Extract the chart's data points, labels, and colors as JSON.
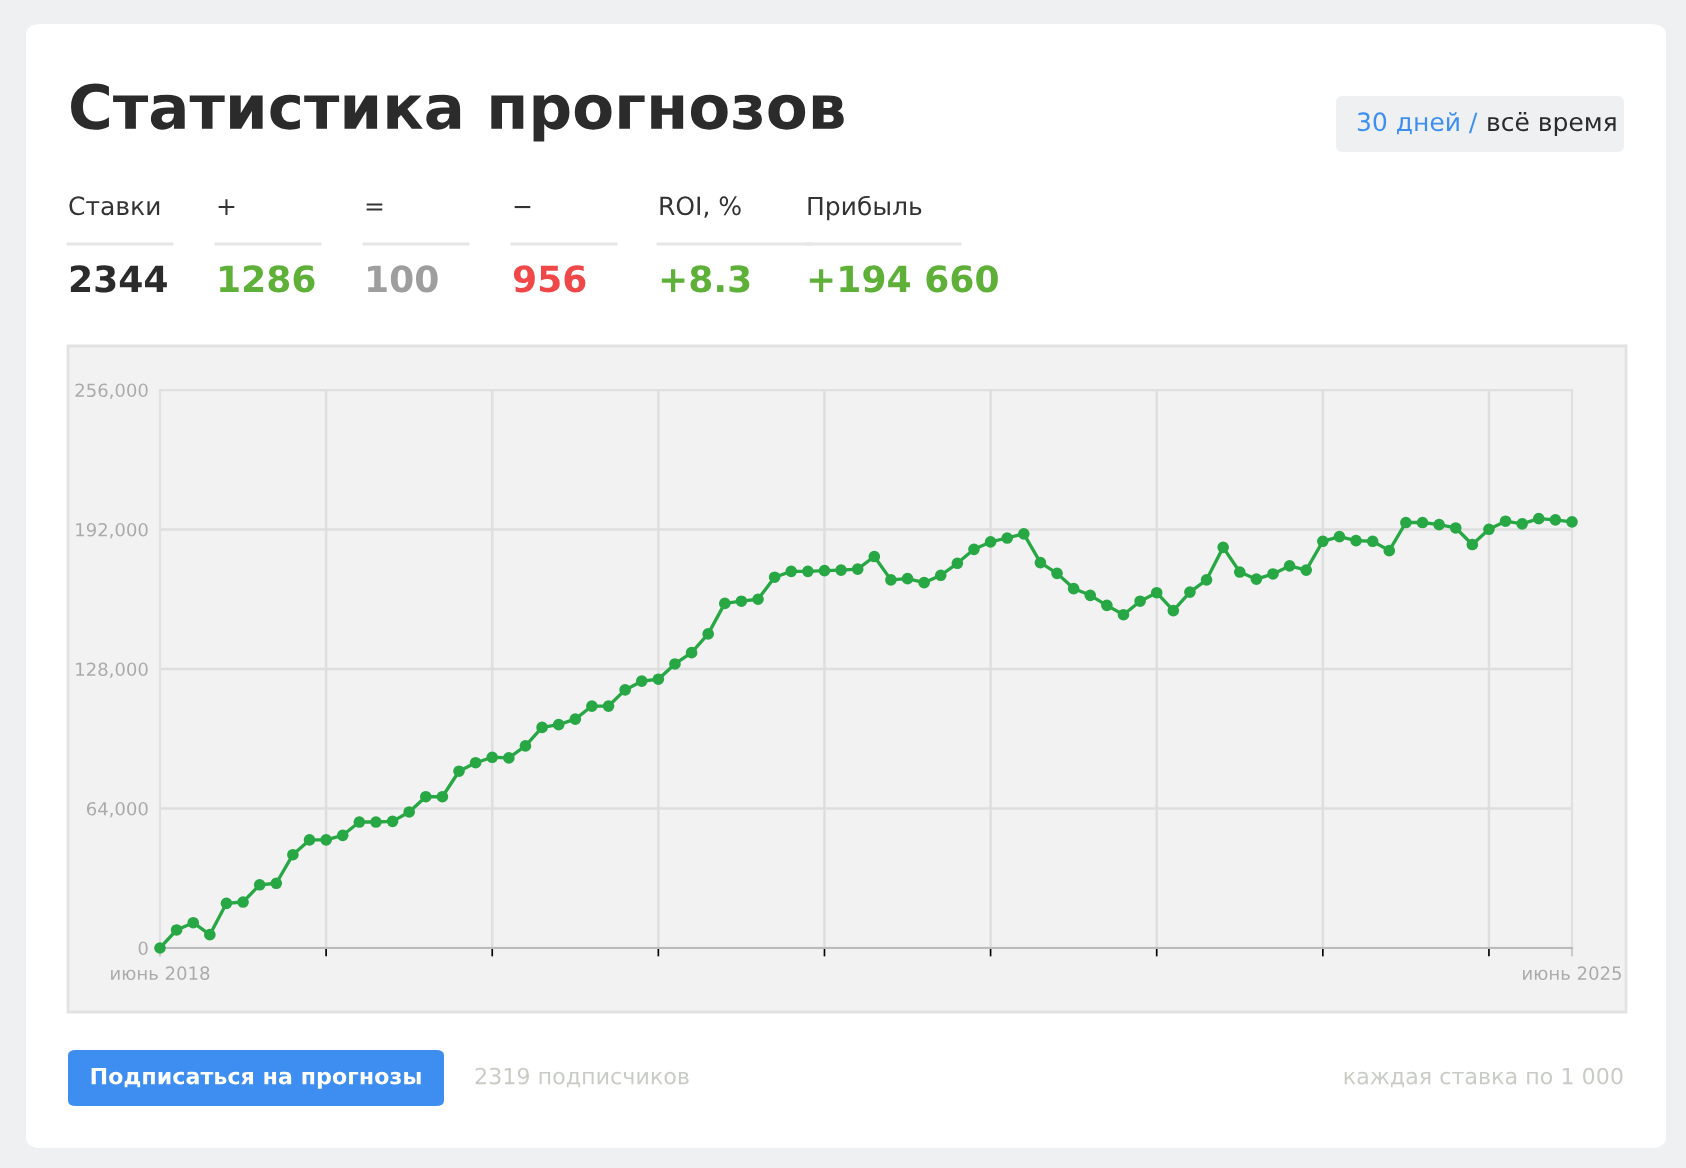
{
  "chart_data": [
    {
      "type": "other",
      "title": "Статистика прогнозов",
      "categories": [
        "Ставки",
        "+",
        "=",
        "−",
        "ROI, %",
        "Прибыль"
      ],
      "value_labels": [
        "2344",
        "1286",
        "100",
        "956",
        "+8.3",
        "+194 660"
      ],
      "colors": [
        "#2b2b2b",
        "#5fb039",
        "#9e9e9e",
        "#f04848",
        "#5fb039",
        "#5fb039"
      ],
      "annotations": [
        "30 дней /",
        "всё время",
        "Подписаться на прогнозы",
        "2319 подписчиков",
        "каждая ставка по 1 000"
      ]
    },
    {
      "type": "line",
      "color": "#28a745",
      "marker": "circle",
      "line_style": "solid",
      "grid": true,
      "legend": false,
      "categories": [
        "июнь 2018",
        null,
        null,
        null,
        null,
        null,
        null,
        null,
        null,
        null,
        null,
        null,
        null,
        null,
        null,
        null,
        null,
        null,
        null,
        null,
        null,
        null,
        null,
        null,
        null,
        null,
        null,
        null,
        null,
        null,
        null,
        null,
        null,
        null,
        null,
        null,
        null,
        null,
        null,
        null,
        null,
        null,
        null,
        null,
        null,
        null,
        null,
        null,
        null,
        null,
        null,
        null,
        null,
        null,
        null,
        null,
        null,
        null,
        null,
        null,
        null,
        null,
        null,
        null,
        null,
        null,
        null,
        null,
        null,
        null,
        null,
        null,
        null,
        null,
        null,
        null,
        null,
        null,
        null,
        null,
        null,
        null,
        null,
        null,
        null,
        "июнь 2025"
      ],
      "values": [
        0,
        8260,
        11600,
        6100,
        20500,
        21100,
        29000,
        29700,
        42800,
        49600,
        49600,
        51700,
        57800,
        57800,
        58100,
        62400,
        69400,
        69400,
        81100,
        85000,
        87500,
        87200,
        92700,
        101200,
        102500,
        105000,
        111000,
        111000,
        118400,
        122400,
        123300,
        130300,
        135500,
        144100,
        158100,
        159100,
        160000,
        170100,
        172800,
        172800,
        173100,
        173400,
        173800,
        179600,
        168900,
        169500,
        167600,
        171000,
        176500,
        182900,
        186300,
        188100,
        190000,
        176800,
        171900,
        164900,
        161800,
        157200,
        152900,
        159100,
        163000,
        154800,
        163300,
        168900,
        183800,
        172500,
        169200,
        171600,
        175300,
        173400,
        186600,
        188700,
        186900,
        186600,
        182300,
        195200,
        195200,
        194200,
        192700,
        185100,
        192100,
        195800,
        194600,
        197000,
        196400,
        195500
      ],
      "ylim": [
        0,
        256000
      ],
      "yticks": [
        0,
        {
          "value": 64000,
          "label": "64,000"
        },
        {
          "value": 128000,
          "label": "128,000"
        },
        {
          "value": 192000,
          "label": "192,000"
        },
        {
          "value": 256000,
          "label": "256,000"
        }
      ]
    }
  ]
}
